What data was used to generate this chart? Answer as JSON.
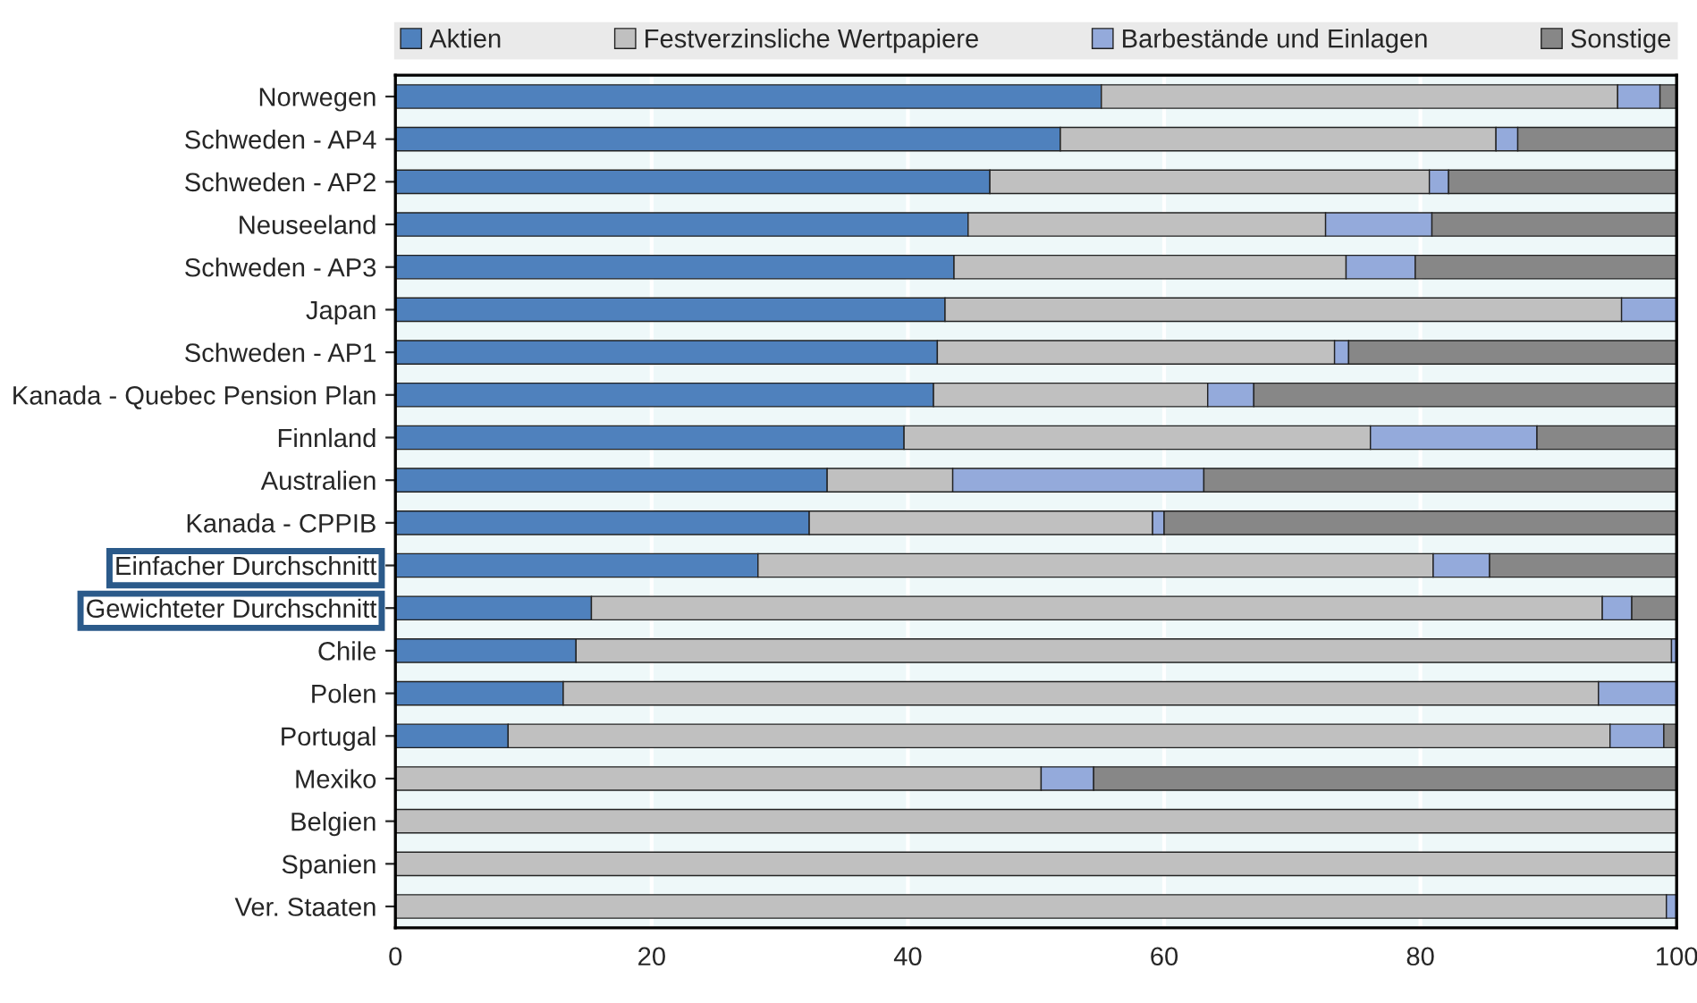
{
  "chart_data": {
    "type": "bar",
    "orientation": "horizontal",
    "stacked": true,
    "categories": [
      "Norwegen",
      "Schweden - AP4",
      "Schweden - AP2",
      "Neuseeland",
      "Schweden - AP3",
      "Japan",
      "Schweden - AP1",
      "Kanada - Quebec Pension Plan",
      "Finnland",
      "Australien",
      "Kanada - CPPIB",
      "Einfacher Durchschnitt",
      "Gewichteter Durchschnitt",
      "Chile",
      "Polen",
      "Portugal",
      "Mexiko",
      "Belgien",
      "Spanien",
      "Ver. Staaten"
    ],
    "series": [
      {
        "name": "Aktien",
        "color": "#4f81bd",
        "values": [
          55.1,
          51.9,
          46.4,
          44.7,
          43.6,
          42.9,
          42.3,
          42.0,
          39.7,
          33.7,
          32.3,
          28.3,
          15.3,
          14.1,
          13.1,
          8.8,
          0,
          0,
          0,
          0
        ]
      },
      {
        "name": "Festverzinsliche Wertpapiere",
        "color": "#c0c0c0",
        "values": [
          40.3,
          34.0,
          34.3,
          27.9,
          30.6,
          52.8,
          31.0,
          21.4,
          36.4,
          9.8,
          26.8,
          52.7,
          78.9,
          85.5,
          80.8,
          86.0,
          50.4,
          100,
          100,
          99.2
        ]
      },
      {
        "name": "Barbestände und Einlagen",
        "color": "#94aadb",
        "values": [
          3.3,
          1.7,
          1.5,
          8.3,
          5.4,
          4.3,
          1.1,
          3.6,
          13.0,
          19.6,
          0.9,
          4.4,
          2.3,
          0.4,
          6.1,
          4.2,
          4.1,
          0,
          0,
          0.8
        ]
      },
      {
        "name": "Sonstige",
        "color": "#878787",
        "values": [
          1.3,
          12.4,
          17.8,
          19.1,
          20.4,
          0,
          25.6,
          33.0,
          10.9,
          36.9,
          40.0,
          14.6,
          3.5,
          0,
          0,
          1.0,
          45.5,
          0,
          0,
          0
        ]
      }
    ],
    "xlim": [
      0,
      100
    ],
    "xticks": [
      0,
      20,
      40,
      60,
      80,
      100
    ],
    "grid": "x",
    "legend": "top"
  }
}
